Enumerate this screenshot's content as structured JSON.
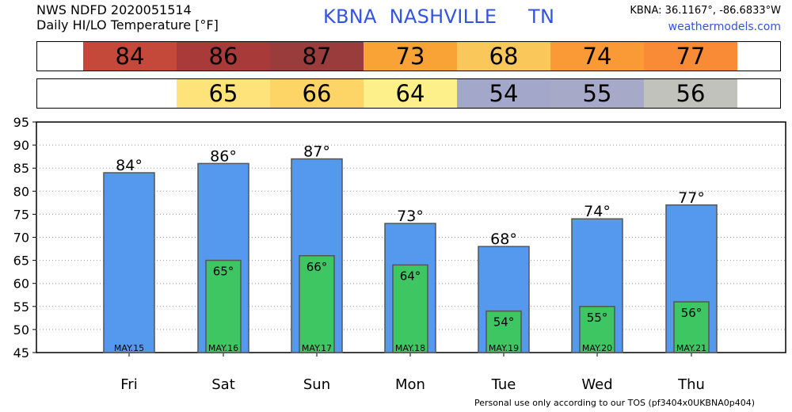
{
  "header": {
    "line1": "NWS NDFD 2020051514",
    "line2": "Daily HI/LO Temperature [°F]",
    "station": "KBNA  NASHVILLE     TN",
    "coords": "KBNA: 36.1167°, -86.6833°W",
    "site": "weathermodels.com"
  },
  "hi_strip": [
    {
      "text": "84",
      "color": "#c4493a"
    },
    {
      "text": "86",
      "color": "#a93a3a"
    },
    {
      "text": "87",
      "color": "#9a3c3c"
    },
    {
      "text": "73",
      "color": "#f9a336"
    },
    {
      "text": "68",
      "color": "#f9c75a"
    },
    {
      "text": "74",
      "color": "#f99a36"
    },
    {
      "text": "77",
      "color": "#f98a36"
    }
  ],
  "lo_strip": [
    {
      "text": "",
      "color": "#ffffff"
    },
    {
      "text": "65",
      "color": "#fde379"
    },
    {
      "text": "66",
      "color": "#fdd566"
    },
    {
      "text": "64",
      "color": "#fdf08a"
    },
    {
      "text": "54",
      "color": "#a3a7c9"
    },
    {
      "text": "55",
      "color": "#a7a9c9"
    },
    {
      "text": "56",
      "color": "#c2c2bc"
    }
  ],
  "chart_data": {
    "type": "bar",
    "categories": [
      "Fri",
      "Sat",
      "Sun",
      "Mon",
      "Tue",
      "Wed",
      "Thu"
    ],
    "dates": [
      "MAY.15",
      "MAY.16",
      "MAY.17",
      "MAY.18",
      "MAY.19",
      "MAY.20",
      "MAY.21"
    ],
    "series": [
      {
        "values": [
          84,
          86,
          87,
          73,
          68,
          74,
          77
        ],
        "color": "#5599ee"
      },
      {
        "values": [
          null,
          65,
          66,
          64,
          54,
          55,
          56
        ],
        "color": "#3ec663"
      }
    ],
    "ylim": [
      45,
      95
    ],
    "yticks": [
      45,
      50,
      55,
      60,
      65,
      70,
      75,
      80,
      85,
      90,
      95
    ],
    "grid": true,
    "unit_mark": "°"
  },
  "footer": "Personal use only according to our TOS (pf3404x0UKBNA0p404)"
}
